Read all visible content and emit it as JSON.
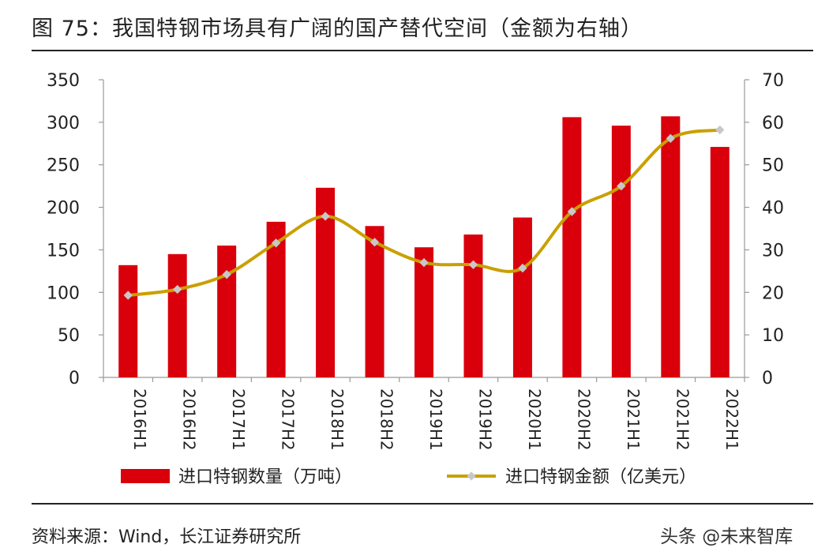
{
  "title": "图 75：我国特钢市场具有广阔的国产替代空间（金额为右轴）",
  "source": "资料来源：Wind，长江证券研究所",
  "watermark": "头条 @未来智库",
  "colors": {
    "bar": "#d9000c",
    "line": "#c9a000",
    "marker": "#c8c8c8"
  },
  "chart_data": {
    "type": "bar+line",
    "categories": [
      "2016H1",
      "2016H2",
      "2017H1",
      "2017H2",
      "2018H1",
      "2018H2",
      "2019H1",
      "2019H2",
      "2020H1",
      "2020H2",
      "2021H1",
      "2021H2",
      "2022H1"
    ],
    "series": [
      {
        "name": "进口特钢数量（万吨）",
        "type": "bar",
        "axis": "left",
        "values": [
          132,
          145,
          155,
          183,
          223,
          178,
          153,
          168,
          188,
          306,
          296,
          307,
          271
        ]
      },
      {
        "name": "进口特钢金额（亿美元）",
        "type": "line",
        "axis": "right",
        "values": [
          19.3,
          20.7,
          24.2,
          31.6,
          37.9,
          31.8,
          27.0,
          26.5,
          25.7,
          39.0,
          45.0,
          56.2,
          58.2
        ]
      }
    ],
    "y_left": {
      "min": 0,
      "max": 350,
      "ticks": [
        0,
        50,
        100,
        150,
        200,
        250,
        300,
        350
      ]
    },
    "y_right": {
      "min": 0,
      "max": 70,
      "ticks": [
        0,
        10,
        20,
        30,
        40,
        50,
        60,
        70
      ]
    },
    "grid": false,
    "legend_position": "bottom"
  }
}
